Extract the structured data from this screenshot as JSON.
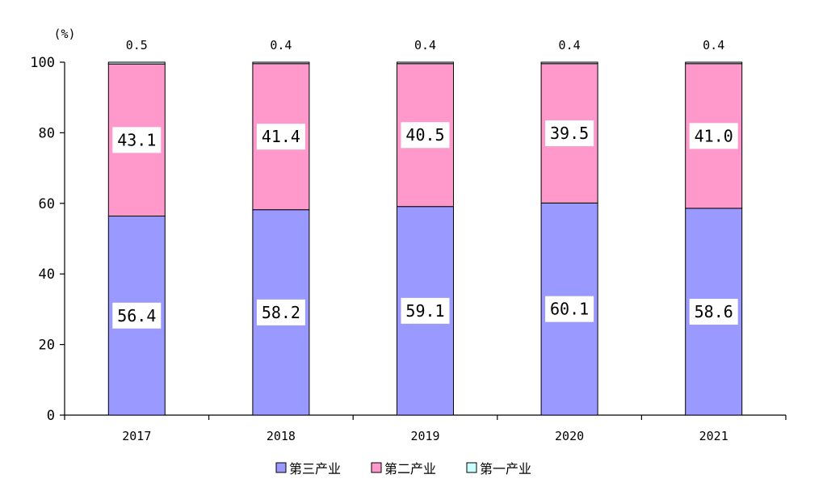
{
  "chart_data": {
    "type": "bar",
    "stacked": true,
    "categories": [
      "2017",
      "2018",
      "2019",
      "2020",
      "2021"
    ],
    "series": [
      {
        "name": "第三产业",
        "values": [
          56.4,
          58.2,
          59.1,
          60.1,
          58.6
        ],
        "color": "#9999ff"
      },
      {
        "name": "第二产业",
        "values": [
          43.1,
          41.4,
          40.5,
          39.5,
          41.0
        ],
        "color": "#ff99cc"
      },
      {
        "name": "第一产业",
        "values": [
          0.5,
          0.4,
          0.4,
          0.4,
          0.4
        ],
        "color": "#ccffff"
      }
    ],
    "value_labels": [
      [
        "56.4",
        "58.2",
        "59.1",
        "60.1",
        "58.6"
      ],
      [
        "43.1",
        "41.4",
        "40.5",
        "39.5",
        "41.0"
      ],
      [
        "0.5",
        "0.4",
        "0.4",
        "0.4",
        "0.4"
      ]
    ],
    "unit": "(%)",
    "y_ticks": [
      "0",
      "20",
      "40",
      "60",
      "80",
      "100"
    ],
    "ylim": [
      0,
      100
    ],
    "grid": false,
    "legend_position": "bottom"
  }
}
